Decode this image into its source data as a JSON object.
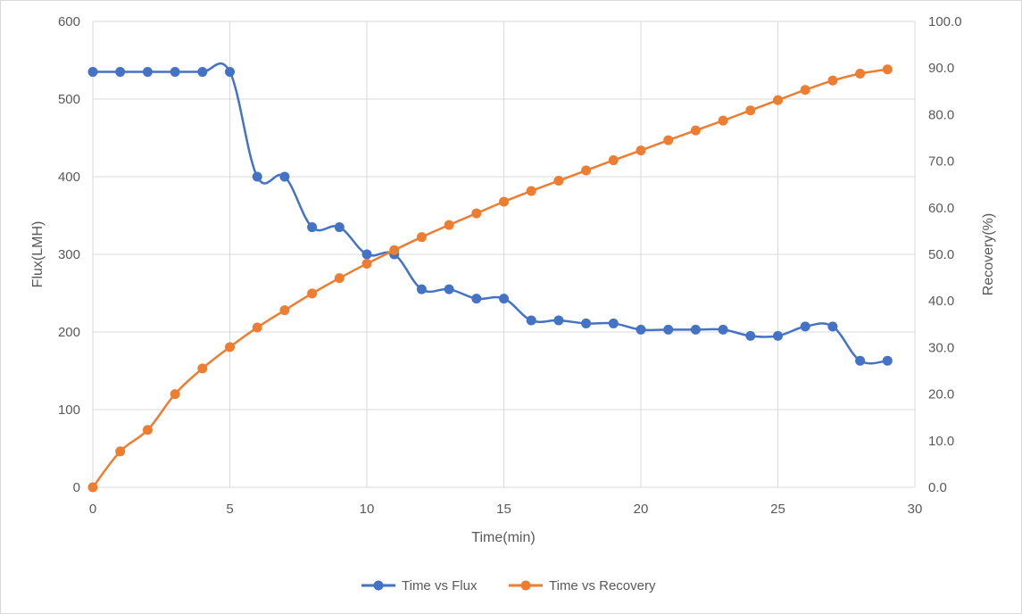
{
  "chart_data": {
    "type": "line",
    "title": "",
    "xlabel": "Time(min)",
    "ylabel_left": "Flux(LMH)",
    "ylabel_right": "Recovery(%)",
    "xlim": [
      0,
      30
    ],
    "ylim_left": [
      0,
      600
    ],
    "ylim_right": [
      0,
      100
    ],
    "x_ticks": [
      "0",
      "5",
      "10",
      "15",
      "20",
      "25",
      "30"
    ],
    "y_left_ticks": [
      "0",
      "100",
      "200",
      "300",
      "400",
      "500",
      "600"
    ],
    "y_right_ticks": [
      "0.0",
      "10.0",
      "20.0",
      "30.0",
      "40.0",
      "50.0",
      "60.0",
      "70.0",
      "80.0",
      "90.0",
      "100.0"
    ],
    "grid": true,
    "legend_position": "bottom",
    "series": [
      {
        "name": "Time vs Flux",
        "axis": "left",
        "color": "#4472C4",
        "x": [
          0,
          1,
          2,
          3,
          4,
          5,
          6,
          7,
          8,
          9,
          10,
          11,
          12,
          13,
          14,
          15,
          16,
          17,
          18,
          19,
          20,
          21,
          22,
          23,
          24,
          25,
          26,
          27,
          28,
          29
        ],
        "values": [
          535,
          535,
          535,
          535,
          535,
          535,
          400,
          400,
          335,
          335,
          300,
          300,
          255,
          255,
          243,
          243,
          215,
          215,
          211,
          211,
          203,
          203,
          203,
          203,
          195,
          195,
          207,
          207,
          163,
          163
        ]
      },
      {
        "name": "Time vs Recovery",
        "axis": "right",
        "color": "#ED7D31",
        "x": [
          0,
          1,
          2,
          3,
          4,
          5,
          6,
          7,
          8,
          9,
          10,
          11,
          12,
          13,
          14,
          15,
          16,
          17,
          18,
          19,
          20,
          21,
          22,
          23,
          24,
          25,
          26,
          27,
          28,
          29
        ],
        "values": [
          0,
          7.7,
          12.3,
          20,
          25.5,
          30.1,
          34.3,
          38,
          41.6,
          44.9,
          48,
          50.9,
          53.7,
          56.3,
          58.8,
          61.3,
          63.6,
          65.8,
          68,
          70.2,
          72.3,
          74.5,
          76.6,
          78.7,
          80.9,
          83.1,
          85.3,
          87.3,
          88.8,
          89.7
        ]
      }
    ]
  }
}
